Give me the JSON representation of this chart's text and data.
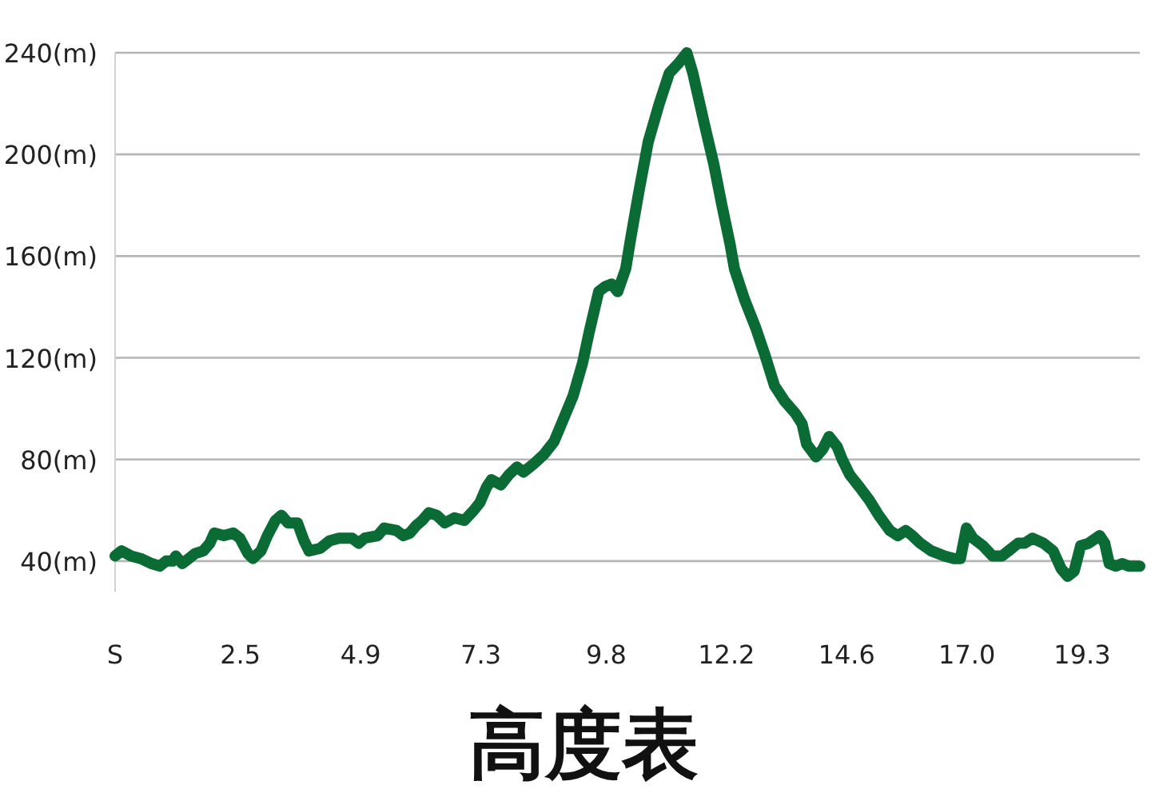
{
  "chart_data": {
    "type": "line",
    "title": "高度表",
    "x": [
      0,
      0.13,
      0.32,
      0.51,
      0.73,
      0.89,
      1.02,
      1.15,
      1.21,
      1.34,
      1.47,
      1.6,
      1.76,
      1.89,
      1.98,
      2.17,
      2.36,
      2.49,
      2.65,
      2.75,
      2.91,
      3.04,
      3.2,
      3.32,
      3.45,
      3.64,
      3.77,
      3.87,
      4.09,
      4.28,
      4.47,
      4.73,
      4.86,
      4.98,
      5.24,
      5.37,
      5.62,
      5.75,
      5.88,
      6.01,
      6.13,
      6.26,
      6.42,
      6.58,
      6.77,
      6.97,
      7.16,
      7.28,
      7.41,
      7.51,
      7.7,
      7.86,
      8.02,
      8.15,
      8.34,
      8.56,
      8.76,
      8.95,
      9.14,
      9.33,
      9.46,
      9.65,
      9.78,
      9.91,
      10.03,
      10.19,
      10.29,
      10.45,
      10.64,
      10.86,
      11.06,
      11.25,
      11.41,
      11.53,
      11.76,
      11.95,
      12.11,
      12.27,
      12.36,
      12.56,
      12.78,
      12.97,
      13.16,
      13.36,
      13.58,
      13.71,
      13.8,
      13.99,
      14.12,
      14.25,
      14.41,
      14.51,
      14.66,
      14.86,
      15.05,
      15.24,
      15.46,
      15.62,
      15.78,
      15.91,
      16.07,
      16.29,
      16.55,
      16.74,
      16.87,
      16.99,
      17.12,
      17.32,
      17.51,
      17.7,
      17.83,
      18.02,
      18.15,
      18.31,
      18.53,
      18.72,
      18.88,
      19.01,
      19.14,
      19.27,
      19.43,
      19.65,
      19.75,
      19.84,
      19.97,
      20.1,
      20.23,
      20.45
    ],
    "series": [
      {
        "color": "#0b6b35",
        "values": [
          42,
          44,
          42,
          41,
          39,
          38,
          40,
          40,
          42,
          39,
          41,
          43,
          44,
          47,
          51,
          50,
          51,
          49,
          43,
          41,
          44,
          50,
          56,
          58,
          55,
          55,
          48,
          44,
          45,
          48,
          49,
          49,
          47,
          49,
          50,
          53,
          52,
          50,
          51,
          54,
          56,
          59,
          58,
          55,
          57,
          56,
          60,
          63,
          69,
          72,
          70,
          74,
          77,
          75,
          78,
          82,
          87,
          96,
          105,
          118,
          130,
          146,
          148,
          149,
          146,
          155,
          167,
          185,
          205,
          220,
          232,
          236,
          240,
          232,
          212,
          196,
          180,
          165,
          155,
          143,
          132,
          121,
          109,
          103,
          98,
          94,
          86,
          81,
          84,
          89,
          85,
          80,
          74,
          69,
          64,
          58,
          52,
          50,
          52,
          50,
          47,
          44,
          42,
          41,
          41,
          53,
          49,
          46,
          42,
          42,
          44,
          47,
          47,
          49,
          47,
          44,
          37,
          34,
          36,
          46,
          47,
          50,
          47,
          39,
          38,
          39,
          38,
          38
        ]
      }
    ],
    "xlim": [
      0,
      20.45
    ],
    "xticks": [
      {
        "value": 0,
        "label": "S"
      },
      {
        "value": 2.5,
        "label": "2.5"
      },
      {
        "value": 4.9,
        "label": "4.9"
      },
      {
        "value": 7.3,
        "label": "7.3"
      },
      {
        "value": 9.8,
        "label": "9.8"
      },
      {
        "value": 12.2,
        "label": "12.2"
      },
      {
        "value": 14.6,
        "label": "14.6"
      },
      {
        "value": 17.0,
        "label": "17.0"
      },
      {
        "value": 19.3,
        "label": "19.3"
      }
    ],
    "yticks": [
      {
        "value": 40,
        "label": "40(m)"
      },
      {
        "value": 80,
        "label": "80(m)"
      },
      {
        "value": 120,
        "label": "120(m)"
      },
      {
        "value": 160,
        "label": "160(m)"
      },
      {
        "value": 200,
        "label": "200(m)"
      },
      {
        "value": 240,
        "label": "240(m)"
      }
    ],
    "ylim": [
      28,
      240
    ],
    "grid": "y",
    "marker": "none",
    "line_style": "solid"
  }
}
